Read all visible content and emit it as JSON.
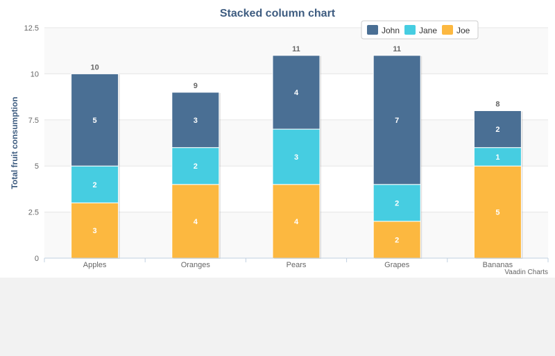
{
  "chart_data": {
    "type": "bar",
    "stacked": true,
    "title": "Stacked column chart",
    "xlabel": "",
    "ylabel": "Total fruit consumption",
    "categories": [
      "Apples",
      "Oranges",
      "Pears",
      "Grapes",
      "Bananas"
    ],
    "ylim": [
      0,
      12.5
    ],
    "yticks": [
      "0",
      "2.5",
      "5",
      "7.5",
      "10",
      "12.5"
    ],
    "ytick_values": [
      0,
      2.5,
      5,
      7.5,
      10,
      12.5
    ],
    "series": [
      {
        "name": "John",
        "color": "#4a6f94",
        "values": [
          5,
          3,
          4,
          7,
          2
        ]
      },
      {
        "name": "Jane",
        "color": "#46cde1",
        "values": [
          2,
          2,
          3,
          2,
          1
        ]
      },
      {
        "name": "Joe",
        "color": "#fcb840",
        "values": [
          3,
          4,
          4,
          2,
          5
        ]
      }
    ],
    "stack_order_bottom_to_top": [
      "Joe",
      "Jane",
      "John"
    ],
    "totals": [
      10,
      9,
      11,
      11,
      8
    ],
    "legend_position": "top-right",
    "grid": true,
    "credits": "Vaadin Charts"
  }
}
